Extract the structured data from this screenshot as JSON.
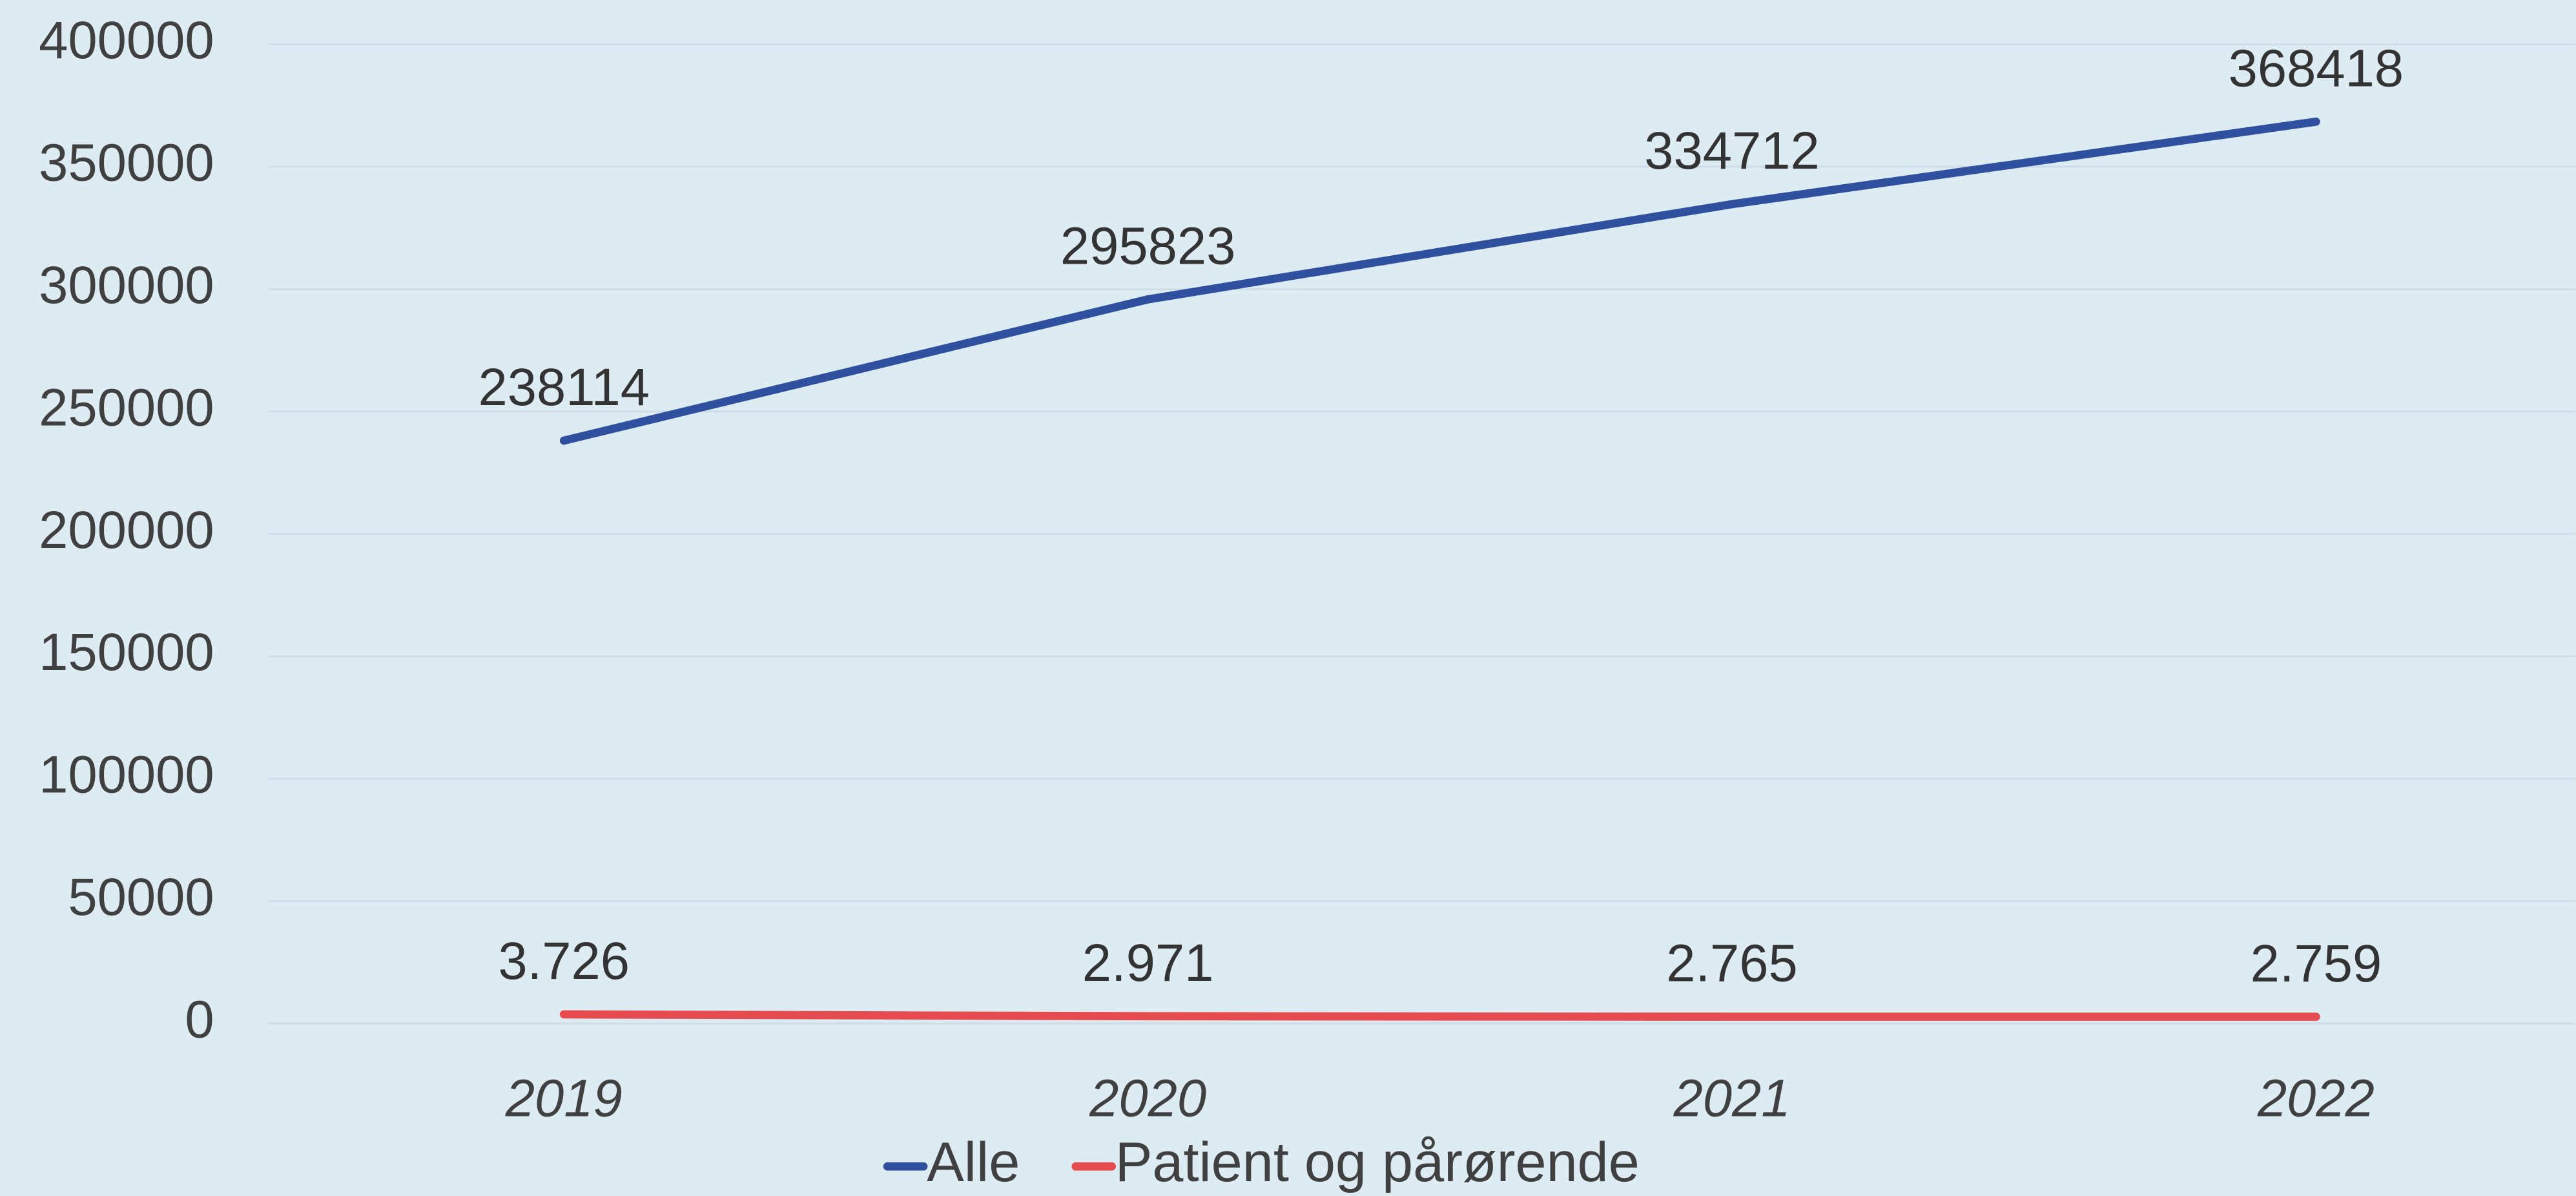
{
  "chart_data": {
    "type": "line",
    "categories": [
      "2019",
      "2020",
      "2021",
      "2022"
    ],
    "series": [
      {
        "name": "Alle",
        "color": "#2f4f9f",
        "values": [
          238114,
          295823,
          334712,
          368418
        ]
      },
      {
        "name": "Patient og pårørende",
        "color": "#e64b50",
        "values": [
          3726,
          2971,
          2765,
          2759
        ],
        "value_labels": [
          "3.726",
          "2.971",
          "2.765",
          "2.759"
        ]
      }
    ],
    "ylim": [
      0,
      400000
    ],
    "yticks": [
      0,
      50000,
      100000,
      150000,
      200000,
      250000,
      300000,
      350000,
      400000
    ],
    "grid": true,
    "legend": "bottom"
  }
}
